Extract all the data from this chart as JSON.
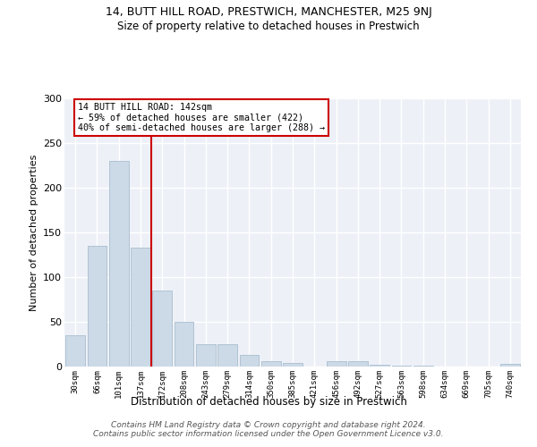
{
  "title1": "14, BUTT HILL ROAD, PRESTWICH, MANCHESTER, M25 9NJ",
  "title2": "Size of property relative to detached houses in Prestwich",
  "xlabel": "Distribution of detached houses by size in Prestwich",
  "ylabel": "Number of detached properties",
  "categories": [
    "30sqm",
    "66sqm",
    "101sqm",
    "137sqm",
    "172sqm",
    "208sqm",
    "243sqm",
    "279sqm",
    "314sqm",
    "350sqm",
    "385sqm",
    "421sqm",
    "456sqm",
    "492sqm",
    "527sqm",
    "563sqm",
    "598sqm",
    "634sqm",
    "669sqm",
    "705sqm",
    "740sqm"
  ],
  "values": [
    35,
    135,
    230,
    133,
    85,
    50,
    25,
    25,
    13,
    6,
    4,
    0,
    6,
    6,
    2,
    1,
    1,
    0,
    0,
    0,
    3
  ],
  "bar_color": "#ccd9e6",
  "bar_edge_color": "#b0c4d4",
  "vline_x": 3.5,
  "vline_color": "#cc0000",
  "annotation_lines": [
    "14 BUTT HILL ROAD: 142sqm",
    "← 59% of detached houses are smaller (422)",
    "40% of semi-detached houses are larger (288) →"
  ],
  "annotation_box_color": "#cc0000",
  "ylim": [
    0,
    300
  ],
  "yticks": [
    0,
    50,
    100,
    150,
    200,
    250,
    300
  ],
  "footer": "Contains HM Land Registry data © Crown copyright and database right 2024.\nContains public sector information licensed under the Open Government Licence v3.0.",
  "bg_color": "#edf1f7"
}
